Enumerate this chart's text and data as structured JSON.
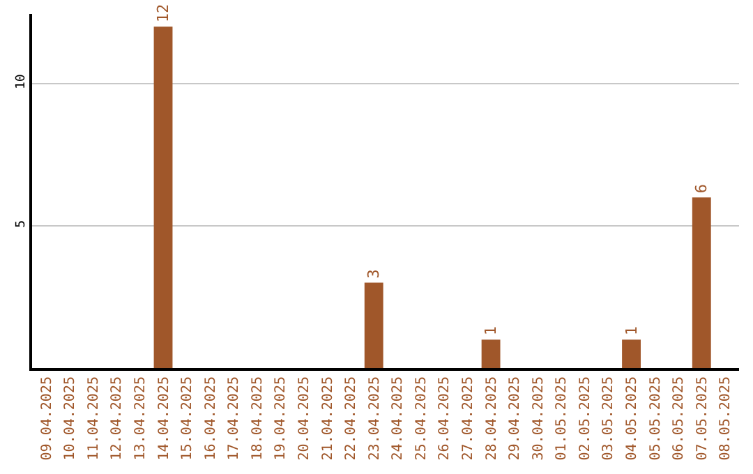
{
  "chart_data": {
    "type": "bar",
    "categories": [
      "09.04.2025",
      "10.04.2025",
      "11.04.2025",
      "12.04.2025",
      "13.04.2025",
      "14.04.2025",
      "15.04.2025",
      "16.04.2025",
      "17.04.2025",
      "18.04.2025",
      "19.04.2025",
      "20.04.2025",
      "21.04.2025",
      "22.04.2025",
      "23.04.2025",
      "24.04.2025",
      "25.04.2025",
      "26.04.2025",
      "27.04.2025",
      "28.04.2025",
      "29.04.2025",
      "30.04.2025",
      "01.05.2025",
      "02.05.2025",
      "03.05.2025",
      "04.05.2025",
      "05.05.2025",
      "06.05.2025",
      "07.05.2025",
      "08.05.2025"
    ],
    "values": [
      0,
      0,
      0,
      0,
      0,
      12,
      0,
      0,
      0,
      0,
      0,
      0,
      0,
      0,
      3,
      0,
      0,
      0,
      0,
      1,
      0,
      0,
      0,
      0,
      0,
      1,
      0,
      0,
      6,
      0
    ],
    "value_labels": [
      null,
      null,
      null,
      null,
      null,
      "12",
      null,
      null,
      null,
      null,
      null,
      null,
      null,
      null,
      "3",
      null,
      null,
      null,
      null,
      "1",
      null,
      null,
      null,
      null,
      null,
      "1",
      null,
      null,
      "6",
      null
    ],
    "color": "#a0572a",
    "ylim": [
      0,
      12.45
    ],
    "yticks": [
      5,
      10
    ],
    "grid": "y"
  }
}
